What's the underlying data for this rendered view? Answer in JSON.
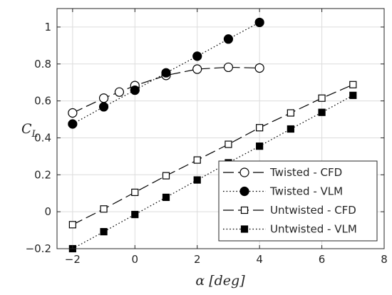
{
  "chart_data": {
    "type": "line",
    "xlabel": "α [deg]",
    "ylabel": "C_L",
    "ylabel_main": "C",
    "ylabel_sub": "L",
    "xlim": [
      -2.5,
      8
    ],
    "ylim": [
      -0.2,
      1.1
    ],
    "xticks": [
      -2,
      0,
      2,
      4,
      6,
      8
    ],
    "yticks": [
      -0.2,
      0,
      0.2,
      0.4,
      0.6,
      0.8,
      1
    ],
    "xtick_labels": [
      "−2",
      "0",
      "2",
      "4",
      "6",
      "8"
    ],
    "ytick_labels": [
      "−0.2",
      "0",
      "0.2",
      "0.4",
      "0.6",
      "0.8",
      "1"
    ],
    "grid": true,
    "legend_position": "lower-right",
    "series": [
      {
        "name": "Twisted - CFD",
        "line": "dashed",
        "marker": "circle-open",
        "x": [
          -2,
          -1,
          -0.5,
          0,
          1,
          2,
          3,
          4
        ],
        "y": [
          0.535,
          0.615,
          0.648,
          0.683,
          0.738,
          0.772,
          0.782,
          0.778
        ]
      },
      {
        "name": "Twisted - VLM",
        "line": "dotted",
        "marker": "circle-filled",
        "x": [
          -2,
          -1,
          0,
          1,
          2,
          3,
          4
        ],
        "y": [
          0.475,
          0.568,
          0.658,
          0.752,
          0.842,
          0.935,
          1.025
        ]
      },
      {
        "name": "Untwisted - CFD",
        "line": "dashed",
        "marker": "square-open",
        "x": [
          -2,
          -1,
          0,
          1,
          2,
          3,
          4,
          5,
          6,
          7
        ],
        "y": [
          -0.07,
          0.015,
          0.105,
          0.195,
          0.28,
          0.365,
          0.455,
          0.535,
          0.615,
          0.688
        ]
      },
      {
        "name": "Untwisted - VLM",
        "line": "dotted",
        "marker": "square-filled",
        "x": [
          -2,
          -1,
          0,
          1,
          2,
          3,
          4,
          5,
          6,
          7
        ],
        "y": [
          -0.2,
          -0.108,
          -0.015,
          0.078,
          0.172,
          0.265,
          0.355,
          0.448,
          0.538,
          0.63
        ]
      }
    ]
  }
}
